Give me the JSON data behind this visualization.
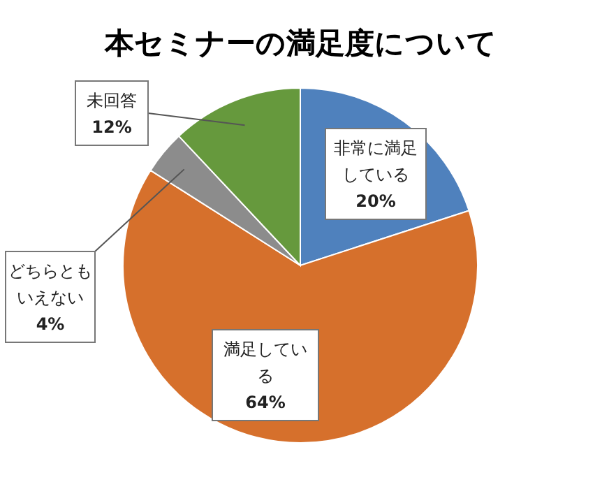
{
  "chart_data": {
    "type": "pie",
    "title": "本セミナーの満足度について",
    "categories": [
      "非常に満足している",
      "満足している",
      "どちらともいえない",
      "未回答"
    ],
    "values": [
      20,
      64,
      4,
      12
    ],
    "value_labels": [
      "20%",
      "64%",
      "4%",
      "12%"
    ],
    "colors": [
      "#4f81bd",
      "#d6702c",
      "#8c8c8c",
      "#66993d"
    ]
  }
}
